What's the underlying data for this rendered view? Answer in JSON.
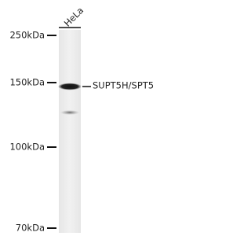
{
  "lane_label": "HeLa",
  "markers": [
    "250kDa",
    "150kDa",
    "100kDa",
    "70kDa"
  ],
  "band_label": "SUPT5H/SPT5"
}
